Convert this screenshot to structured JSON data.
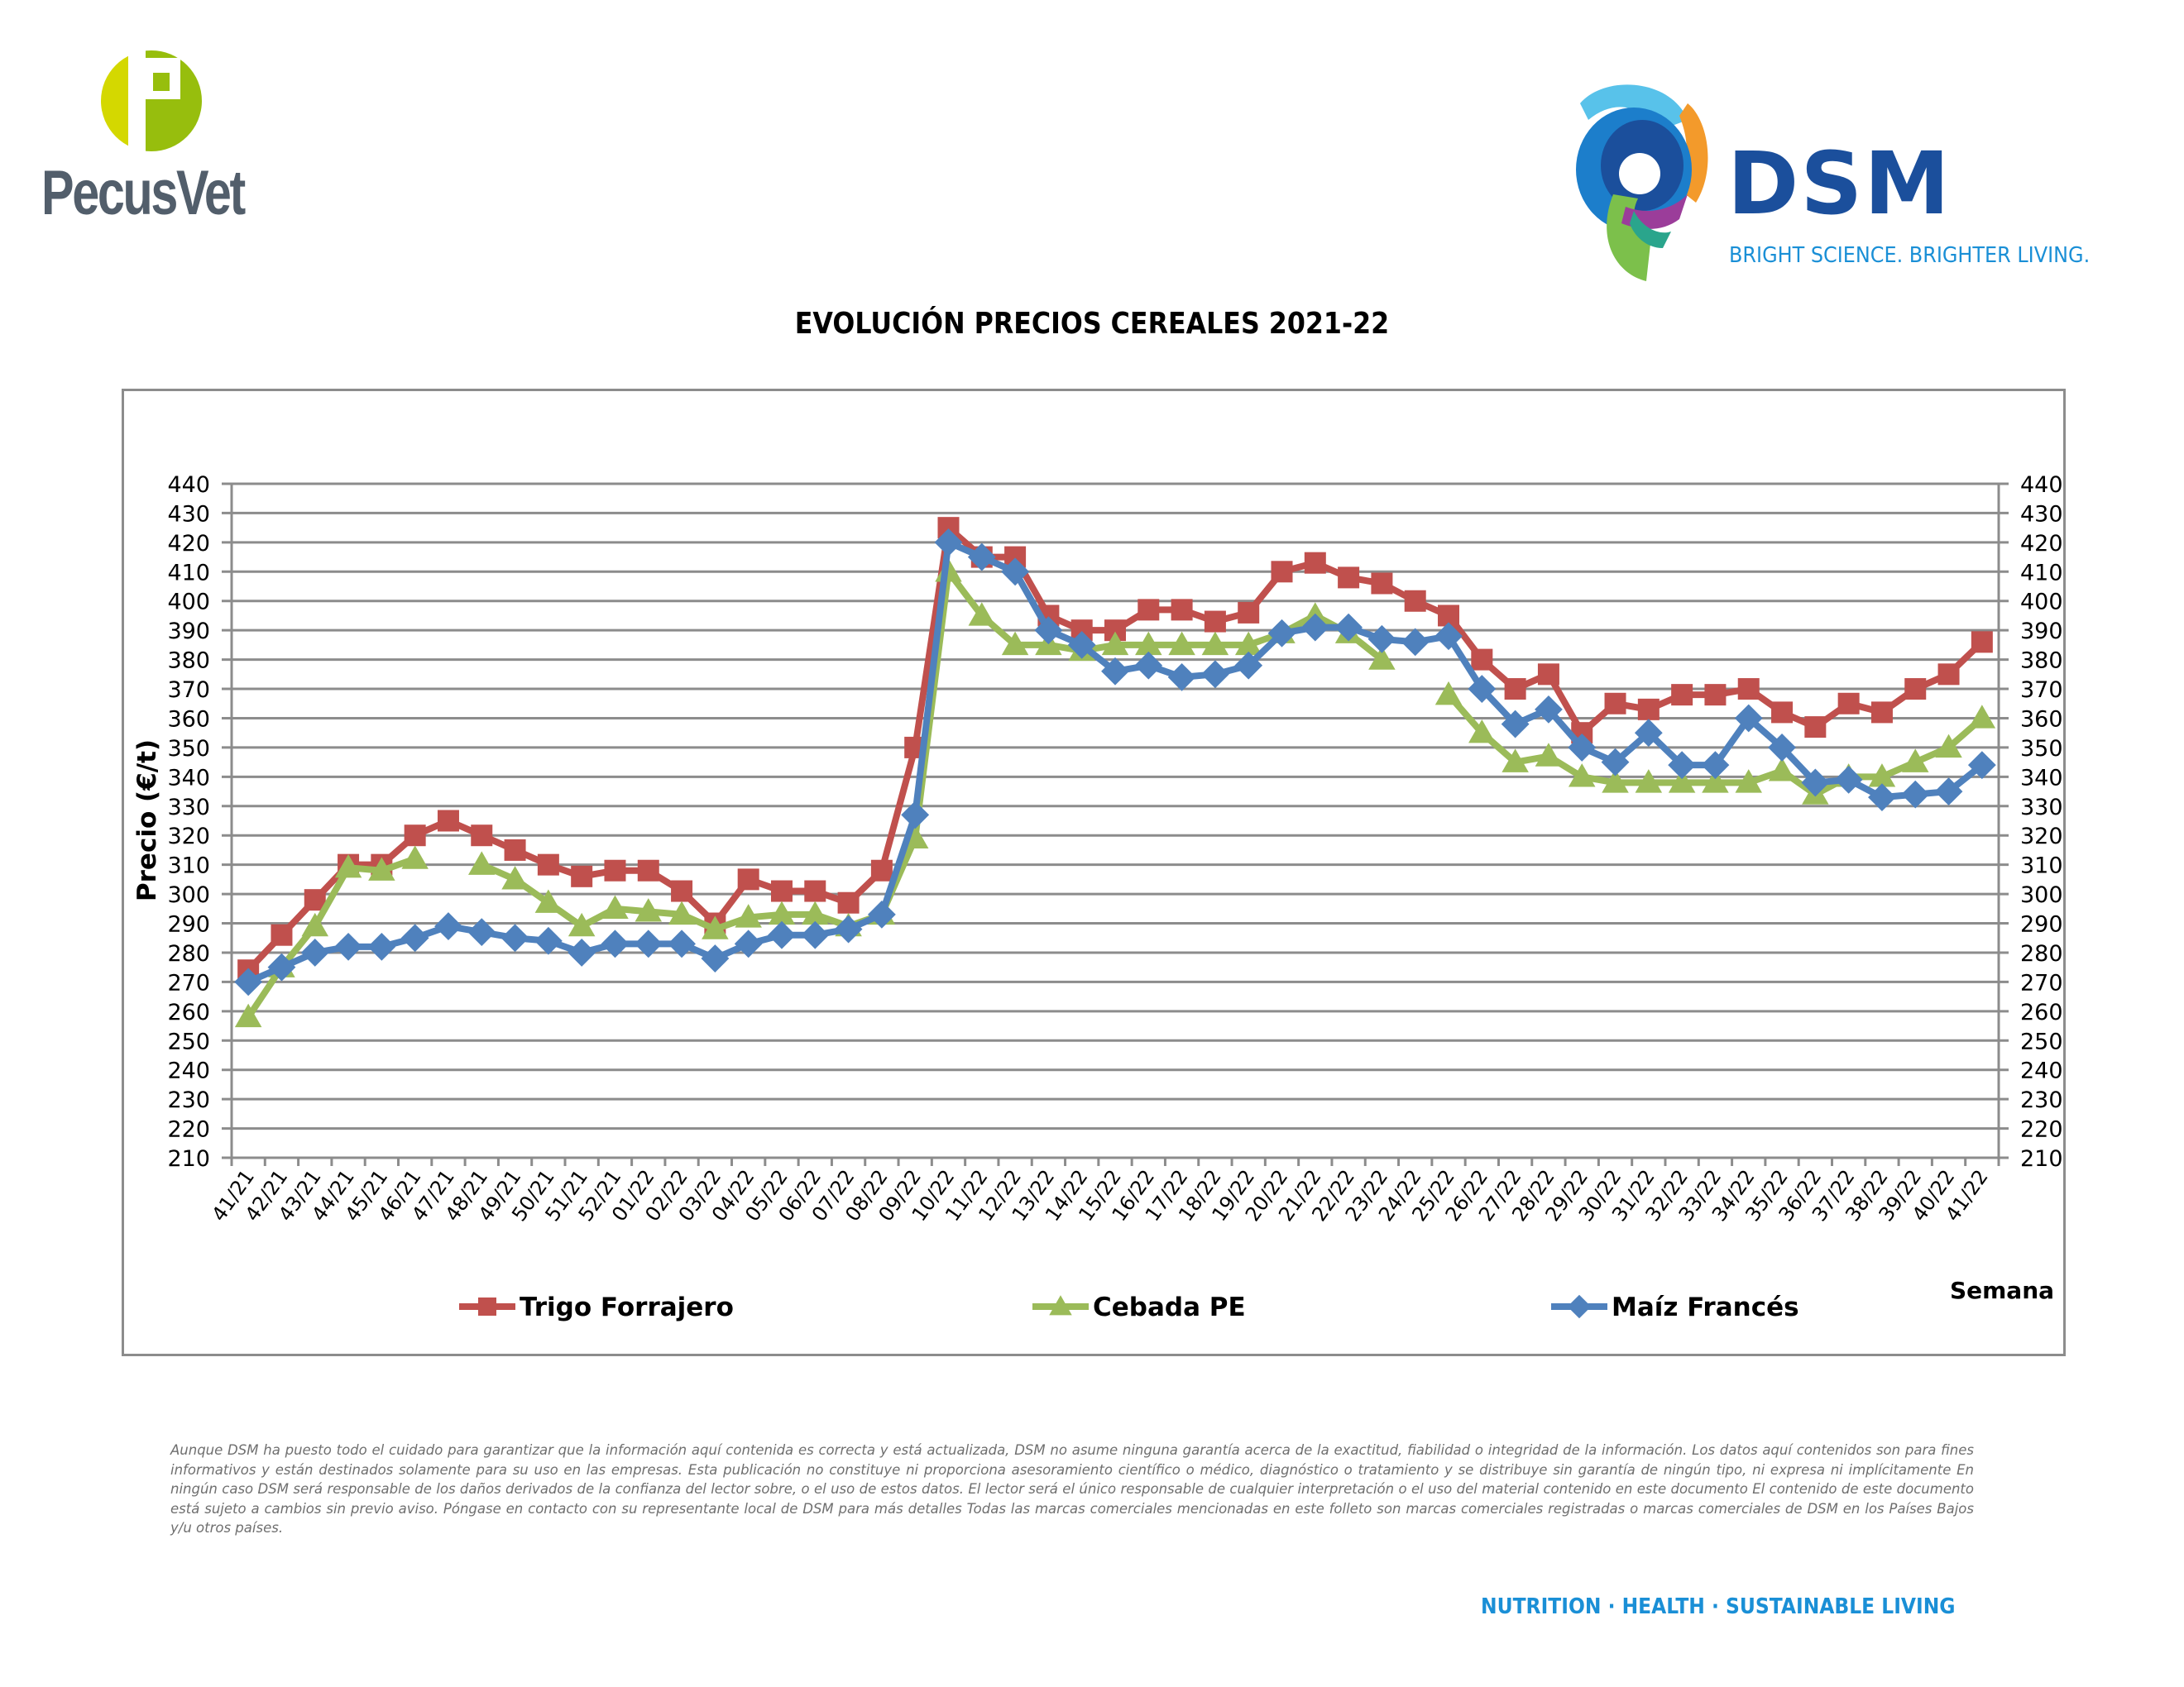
{
  "header": {
    "left_logo": {
      "text": "PecusVet",
      "colors": {
        "light": "#d4d800",
        "dark": "#97be0d",
        "text": "#525e6b"
      }
    },
    "right_logo": {
      "text": "DSM",
      "tagline": "BRIGHT SCIENCE. BRIGHTER LIVING.",
      "colors": {
        "text": "#1b4f9c",
        "tagline": "#1a8fd6"
      }
    }
  },
  "chart_data": {
    "type": "line",
    "title": "EVOLUCIÓN PRECIOS CEREALES 2021-22",
    "xlabel": "Semana",
    "ylabel": "Precio (€/t)",
    "ylim": [
      210,
      440
    ],
    "ytick_step": 10,
    "yticks": [
      210,
      220,
      230,
      240,
      250,
      260,
      270,
      280,
      290,
      300,
      310,
      320,
      330,
      340,
      350,
      360,
      370,
      380,
      390,
      400,
      410,
      420,
      430,
      440
    ],
    "secondary_y_axis": true,
    "grid": true,
    "legend_position": "bottom",
    "categories": [
      "41/21",
      "42/21",
      "43/21",
      "44/21",
      "45/21",
      "46/21",
      "47/21",
      "48/21",
      "49/21",
      "50/21",
      "51/21",
      "52/21",
      "01/22",
      "02/22",
      "03/22",
      "04/22",
      "05/22",
      "06/22",
      "07/22",
      "08/22",
      "09/22",
      "10/22",
      "11/22",
      "12/22",
      "13/22",
      "14/22",
      "15/22",
      "16/22",
      "17/22",
      "18/22",
      "19/22",
      "20/22",
      "21/22",
      "22/22",
      "23/22",
      "24/22",
      "25/22",
      "26/22",
      "27/22",
      "28/22",
      "29/22",
      "30/22",
      "31/22",
      "32/22",
      "33/22",
      "34/22",
      "35/22",
      "36/22",
      "37/22",
      "38/22",
      "39/22",
      "40/22",
      "41/22"
    ],
    "series": [
      {
        "name": "Trigo Forrajero",
        "color": "#c0504d",
        "marker": "square",
        "values": [
          274,
          286,
          298,
          310,
          310,
          320,
          325,
          320,
          315,
          310,
          306,
          308,
          308,
          301,
          290,
          305,
          301,
          301,
          297,
          308,
          350,
          425,
          415,
          415,
          395,
          390,
          390,
          397,
          397,
          393,
          396,
          410,
          413,
          408,
          406,
          400,
          395,
          380,
          370,
          375,
          355,
          365,
          363,
          368,
          368,
          370,
          362,
          357,
          365,
          362,
          370,
          375,
          386
        ]
      },
      {
        "name": "Cebada PE",
        "color": "#9bbb59",
        "marker": "triangle",
        "values": [
          258,
          275,
          289,
          309,
          308,
          312,
          null,
          310,
          305,
          297,
          289,
          295,
          294,
          293,
          288,
          292,
          293,
          293,
          289,
          293,
          319,
          410,
          395,
          385,
          385,
          383,
          385,
          385,
          385,
          385,
          385,
          389,
          395,
          389,
          380,
          null,
          368,
          355,
          345,
          347,
          340,
          338,
          338,
          338,
          338,
          338,
          342,
          334,
          340,
          340,
          345,
          350,
          360
        ]
      },
      {
        "name": "Maíz Francés",
        "color": "#4f81bd",
        "marker": "diamond",
        "values": [
          270,
          275,
          280,
          282,
          282,
          285,
          289,
          287,
          285,
          284,
          280,
          283,
          283,
          283,
          278,
          283,
          286,
          286,
          288,
          293,
          327,
          420,
          415,
          410,
          390,
          385,
          376,
          378,
          374,
          375,
          378,
          389,
          391,
          391,
          387,
          386,
          388,
          370,
          358,
          363,
          350,
          345,
          355,
          344,
          344,
          360,
          350,
          338,
          339,
          333,
          334,
          335,
          344
        ]
      }
    ]
  },
  "disclaimer": "Aunque DSM ha puesto todo el cuidado para garantizar que la información aquí contenida es correcta y está actualizada, DSM no asume ninguna garantía acerca de la exactitud, fiabilidad o integridad de la información. Los datos aquí contenidos son para fines informativos y están destinados solamente para su uso en las empresas. Esta publicación no constituye ni proporciona asesoramiento científico o médico, diagnóstico o tratamiento y se distribuye sin garantía de ningún tipo, ni expresa ni implícitamente En ningún caso DSM será responsable de los daños derivados de la confianza del lector sobre, o el uso de estos datos. El lector será el único responsable de cualquier interpretación o el uso del material contenido en este documento El contenido de este documento está sujeto a cambios sin previo aviso. Póngase en contacto con su representante local de DSM para más detalles Todas las marcas comerciales mencionadas en este folleto son marcas comerciales registradas o marcas comerciales de DSM en los Países Bajos y/u otros países.",
  "footer": {
    "tagline": "NUTRITION  ·  HEALTH  ·  SUSTAINABLE LIVING"
  }
}
